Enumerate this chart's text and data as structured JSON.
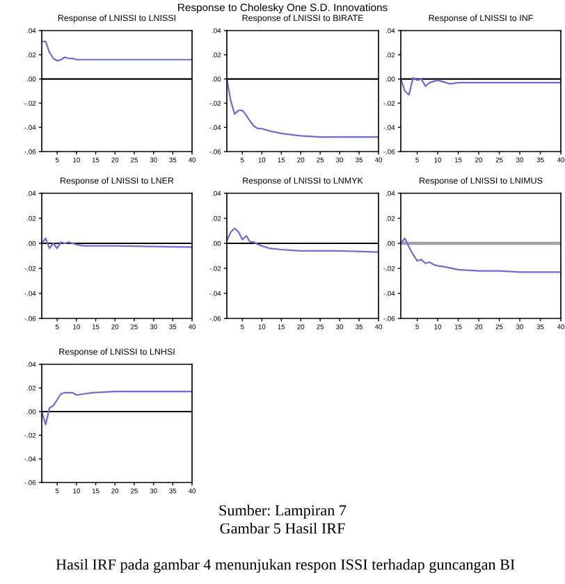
{
  "chart_data": [
    {
      "type": "other",
      "title": "Response to Cholesky One S.D. Innovations",
      "annotations": [
        "Sumber: Lampiran 7",
        "Gambar 5 Hasil IRF",
        "Hasil IRF pada gambar 4 menunjukan respon ISSI terhadap guncangan BI"
      ]
    },
    {
      "type": "line",
      "title": "Response of LNISSI to LNISSI",
      "x": [
        1,
        2,
        3,
        4,
        5,
        6,
        7,
        8,
        9,
        10,
        15,
        20,
        30,
        40
      ],
      "series": [
        {
          "color": "#6b6be0",
          "values": [
            0.031,
            0.031,
            0.022,
            0.017,
            0.015,
            0.016,
            0.018,
            0.017,
            0.017,
            0.016,
            0.016,
            0.016,
            0.016,
            0.016
          ]
        }
      ],
      "xlim": [
        1,
        40
      ],
      "ylim": [
        -0.06,
        0.04
      ],
      "xticks": [
        5,
        10,
        15,
        20,
        25,
        30,
        35,
        40
      ],
      "yticks": [
        {
          "value": -0.06,
          "label": "-.06"
        },
        {
          "value": -0.04,
          "label": "-.04"
        },
        {
          "value": -0.02,
          "label": "-.02"
        },
        {
          "value": 0,
          "label": ".00"
        },
        {
          "value": 0.02,
          "label": ".02"
        },
        {
          "value": 0.04,
          "label": ".04"
        }
      ],
      "ref_lines": [
        {
          "axis": "y",
          "value": 0,
          "color": "#000000"
        }
      ]
    },
    {
      "type": "line",
      "title": "Response of LNISSI to BIRATE",
      "x": [
        1,
        2,
        3,
        4,
        5,
        6,
        7,
        8,
        9,
        10,
        12,
        15,
        20,
        25,
        30,
        40
      ],
      "series": [
        {
          "color": "#6b6be0",
          "values": [
            0.0,
            -0.018,
            -0.029,
            -0.026,
            -0.026,
            -0.03,
            -0.035,
            -0.039,
            -0.041,
            -0.041,
            -0.043,
            -0.045,
            -0.047,
            -0.048,
            -0.048,
            -0.048
          ]
        }
      ],
      "xlim": [
        1,
        40
      ],
      "ylim": [
        -0.06,
        0.04
      ],
      "xticks": [
        5,
        10,
        15,
        20,
        25,
        30,
        35,
        40
      ],
      "yticks": [
        {
          "value": -0.06,
          "label": "-.06"
        },
        {
          "value": -0.04,
          "label": "-.04"
        },
        {
          "value": -0.02,
          "label": "-.02"
        },
        {
          "value": 0,
          "label": ".00"
        },
        {
          "value": 0.02,
          "label": ".02"
        },
        {
          "value": 0.04,
          "label": ".04"
        }
      ],
      "ref_lines": [
        {
          "axis": "y",
          "value": 0,
          "color": "#000000"
        }
      ]
    },
    {
      "type": "line",
      "title": "Response of LNISSI to INF",
      "x": [
        1,
        2,
        3,
        4,
        5,
        6,
        7,
        8,
        9,
        10,
        11,
        12,
        13,
        15,
        20,
        40
      ],
      "series": [
        {
          "color": "#6b6be0",
          "values": [
            0.0,
            -0.01,
            -0.013,
            0.001,
            -0.001,
            0.0,
            -0.006,
            -0.003,
            -0.002,
            -0.001,
            -0.002,
            -0.003,
            -0.004,
            -0.003,
            -0.003,
            -0.003
          ]
        }
      ],
      "xlim": [
        1,
        40
      ],
      "ylim": [
        -0.06,
        0.04
      ],
      "xticks": [
        5,
        10,
        15,
        20,
        25,
        30,
        35,
        40
      ],
      "yticks": [
        {
          "value": -0.06,
          "label": "-.06"
        },
        {
          "value": -0.04,
          "label": "-.04"
        },
        {
          "value": -0.02,
          "label": "-.02"
        },
        {
          "value": 0,
          "label": ".00"
        },
        {
          "value": 0.02,
          "label": ".02"
        },
        {
          "value": 0.04,
          "label": ".04"
        }
      ],
      "ref_lines": [
        {
          "axis": "y",
          "value": 0,
          "color": "#000000"
        }
      ]
    },
    {
      "type": "line",
      "title": "Response of LNISSI to LNER",
      "x": [
        1,
        2,
        3,
        4,
        5,
        6,
        7,
        8,
        9,
        10,
        12,
        20,
        40
      ],
      "series": [
        {
          "color": "#6b6be0",
          "values": [
            0.0,
            0.004,
            -0.004,
            0.0,
            -0.004,
            0.001,
            0.0,
            0.001,
            0.0,
            -0.001,
            -0.002,
            -0.002,
            -0.003
          ]
        }
      ],
      "xlim": [
        1,
        40
      ],
      "ylim": [
        -0.06,
        0.04
      ],
      "xticks": [
        5,
        10,
        15,
        20,
        25,
        30,
        35,
        40
      ],
      "yticks": [
        {
          "value": -0.06,
          "label": "-.06"
        },
        {
          "value": -0.04,
          "label": "-.04"
        },
        {
          "value": -0.02,
          "label": "-.02"
        },
        {
          "value": 0,
          "label": ".00"
        },
        {
          "value": 0.02,
          "label": ".02"
        },
        {
          "value": 0.04,
          "label": ".04"
        }
      ],
      "ref_lines": [
        {
          "axis": "y",
          "value": 0,
          "color": "#000000"
        }
      ]
    },
    {
      "type": "line",
      "title": "Response of LNISSI to LNMYK",
      "x": [
        1,
        2,
        3,
        4,
        5,
        6,
        7,
        8,
        9,
        10,
        12,
        15,
        20,
        30,
        40
      ],
      "series": [
        {
          "color": "#6b6be0",
          "values": [
            0.002,
            0.009,
            0.012,
            0.009,
            0.003,
            0.006,
            0.001,
            0.001,
            -0.001,
            -0.002,
            -0.004,
            -0.005,
            -0.006,
            -0.006,
            -0.007
          ]
        }
      ],
      "xlim": [
        1,
        40
      ],
      "ylim": [
        -0.06,
        0.04
      ],
      "xticks": [
        5,
        10,
        15,
        20,
        25,
        30,
        35,
        40
      ],
      "yticks": [
        {
          "value": -0.06,
          "label": "-.06"
        },
        {
          "value": -0.04,
          "label": "-.04"
        },
        {
          "value": -0.02,
          "label": "-.02"
        },
        {
          "value": 0,
          "label": ".00"
        },
        {
          "value": 0.02,
          "label": ".02"
        },
        {
          "value": 0.04,
          "label": ".04"
        }
      ],
      "ref_lines": [
        {
          "axis": "y",
          "value": 0,
          "color": "#000000"
        }
      ]
    },
    {
      "type": "line",
      "title": "Response of LNISSI to LNIMUS",
      "x": [
        1,
        2,
        3,
        4,
        5,
        6,
        7,
        8,
        9,
        10,
        12,
        15,
        20,
        25,
        30,
        40
      ],
      "series": [
        {
          "color": "#6b6be0",
          "values": [
            0.0,
            0.004,
            -0.003,
            -0.009,
            -0.014,
            -0.013,
            -0.016,
            -0.015,
            -0.017,
            -0.018,
            -0.019,
            -0.021,
            -0.022,
            -0.022,
            -0.023,
            -0.023
          ]
        }
      ],
      "xlim": [
        1,
        40
      ],
      "ylim": [
        -0.06,
        0.04
      ],
      "xticks": [
        5,
        10,
        15,
        20,
        25,
        30,
        35,
        40
      ],
      "yticks": [
        {
          "value": -0.06,
          "label": "-.06"
        },
        {
          "value": -0.04,
          "label": "-.04"
        },
        {
          "value": -0.02,
          "label": "-.02"
        },
        {
          "value": 0,
          "label": ".00"
        },
        {
          "value": 0.02,
          "label": ".02"
        },
        {
          "value": 0.04,
          "label": ".04"
        }
      ],
      "ref_lines": [
        {
          "axis": "y",
          "value": 0,
          "color": "#a0a0a0"
        }
      ]
    },
    {
      "type": "line",
      "title": "Response of LNISSI to LNHSI",
      "x": [
        1,
        2,
        3,
        4,
        5,
        6,
        7,
        8,
        9,
        10,
        12,
        14,
        20,
        40
      ],
      "series": [
        {
          "color": "#6b6be0",
          "values": [
            0.0,
            -0.011,
            0.003,
            0.005,
            0.01,
            0.015,
            0.016,
            0.016,
            0.016,
            0.014,
            0.015,
            0.016,
            0.017,
            0.017
          ]
        }
      ],
      "xlim": [
        1,
        40
      ],
      "ylim": [
        -0.06,
        0.04
      ],
      "xticks": [
        5,
        10,
        15,
        20,
        25,
        30,
        35,
        40
      ],
      "yticks": [
        {
          "value": -0.06,
          "label": "-.06"
        },
        {
          "value": -0.04,
          "label": "-.04"
        },
        {
          "value": -0.02,
          "label": "-.02"
        },
        {
          "value": 0,
          "label": ".00"
        },
        {
          "value": 0.02,
          "label": ".02"
        },
        {
          "value": 0.04,
          "label": ".04"
        }
      ],
      "ref_lines": [
        {
          "axis": "y",
          "value": 0,
          "color": "#000000"
        }
      ]
    }
  ]
}
